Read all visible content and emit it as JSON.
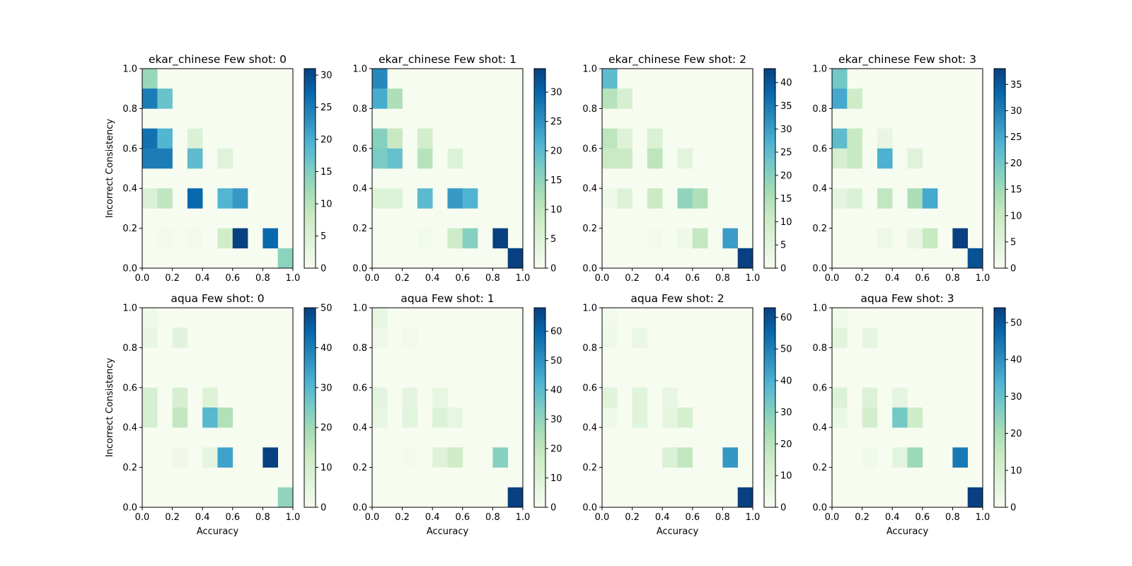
{
  "figure": {
    "shared_xlabel": "Accuracy",
    "shared_ylabel": "Incorrect Consistency"
  },
  "colormap": [
    "#f7fcf0",
    "#e0f3db",
    "#ccebc5",
    "#a8ddb5",
    "#7bccc4",
    "#4eb3d3",
    "#2b8cbe",
    "#0868ac",
    "#084081"
  ],
  "chart_data": [
    {
      "type": "heatmap",
      "title": "ekar_chinese Few shot: 0",
      "xlabel": "",
      "ylabel": "Incorrect Consistency",
      "xlim": [
        0,
        1
      ],
      "ylim": [
        0,
        1
      ],
      "ticks": [
        "0.0",
        "0.2",
        "0.4",
        "0.6",
        "0.8",
        "1.0"
      ],
      "bins": 10,
      "vmax": 31,
      "colorbar_ticks": [
        0,
        5,
        10,
        15,
        20,
        25,
        30
      ],
      "cells": [
        [
          0,
          9,
          13
        ],
        [
          0,
          8,
          25
        ],
        [
          1,
          8,
          17
        ],
        [
          0,
          6,
          26
        ],
        [
          1,
          6,
          19
        ],
        [
          3,
          6,
          5
        ],
        [
          0,
          5,
          25
        ],
        [
          1,
          5,
          25
        ],
        [
          3,
          5,
          18
        ],
        [
          5,
          5,
          4
        ],
        [
          0,
          3,
          5
        ],
        [
          1,
          3,
          9
        ],
        [
          3,
          3,
          27
        ],
        [
          5,
          3,
          19
        ],
        [
          6,
          3,
          22
        ],
        [
          1,
          1,
          1
        ],
        [
          3,
          1,
          1
        ],
        [
          5,
          1,
          7
        ],
        [
          6,
          1,
          31
        ],
        [
          8,
          1,
          27
        ],
        [
          9,
          0,
          14
        ]
      ]
    },
    {
      "type": "heatmap",
      "title": "ekar_chinese Few shot: 1",
      "xlabel": "",
      "ylabel": "",
      "xlim": [
        0,
        1
      ],
      "ylim": [
        0,
        1
      ],
      "ticks": [
        "0.0",
        "0.2",
        "0.4",
        "0.6",
        "0.8",
        "1.0"
      ],
      "bins": 10,
      "vmax": 34,
      "colorbar_ticks": [
        0,
        5,
        10,
        15,
        20,
        25,
        30
      ],
      "cells": [
        [
          0,
          9,
          26
        ],
        [
          0,
          8,
          22
        ],
        [
          1,
          8,
          12
        ],
        [
          0,
          6,
          16
        ],
        [
          1,
          6,
          9
        ],
        [
          3,
          6,
          7
        ],
        [
          0,
          5,
          17
        ],
        [
          1,
          5,
          19
        ],
        [
          3,
          5,
          11
        ],
        [
          5,
          5,
          5
        ],
        [
          0,
          3,
          5
        ],
        [
          1,
          3,
          5
        ],
        [
          3,
          3,
          20
        ],
        [
          5,
          3,
          24
        ],
        [
          6,
          3,
          21
        ],
        [
          3,
          1,
          1
        ],
        [
          5,
          1,
          8
        ],
        [
          6,
          1,
          16
        ],
        [
          8,
          1,
          34
        ],
        [
          9,
          0,
          34
        ]
      ]
    },
    {
      "type": "heatmap",
      "title": "ekar_chinese Few shot: 2",
      "xlabel": "",
      "ylabel": "",
      "xlim": [
        0,
        1
      ],
      "ylim": [
        0,
        1
      ],
      "ticks": [
        "0.0",
        "0.2",
        "0.4",
        "0.6",
        "0.8",
        "1.0"
      ],
      "bins": 10,
      "vmax": 43,
      "colorbar_ticks": [
        0,
        5,
        10,
        15,
        20,
        25,
        30,
        35,
        40
      ],
      "cells": [
        [
          0,
          9,
          25
        ],
        [
          0,
          8,
          14
        ],
        [
          1,
          8,
          8
        ],
        [
          0,
          6,
          13
        ],
        [
          1,
          6,
          6
        ],
        [
          3,
          6,
          7
        ],
        [
          0,
          5,
          11
        ],
        [
          1,
          5,
          11
        ],
        [
          3,
          5,
          13
        ],
        [
          5,
          5,
          5
        ],
        [
          0,
          3,
          2
        ],
        [
          1,
          3,
          6
        ],
        [
          3,
          3,
          11
        ],
        [
          5,
          3,
          19
        ],
        [
          6,
          3,
          15
        ],
        [
          3,
          1,
          1
        ],
        [
          5,
          1,
          2
        ],
        [
          6,
          1,
          12
        ],
        [
          8,
          1,
          30
        ],
        [
          9,
          0,
          43
        ]
      ]
    },
    {
      "type": "heatmap",
      "title": "ekar_chinese Few shot: 3",
      "xlabel": "",
      "ylabel": "",
      "xlim": [
        0,
        1
      ],
      "ylim": [
        0,
        1
      ],
      "ticks": [
        "0.0",
        "0.2",
        "0.4",
        "0.6",
        "0.8",
        "1.0"
      ],
      "bins": 10,
      "vmax": 38,
      "colorbar_ticks": [
        0,
        5,
        10,
        15,
        20,
        25,
        30,
        35
      ],
      "cells": [
        [
          0,
          9,
          20
        ],
        [
          0,
          8,
          25
        ],
        [
          1,
          8,
          9
        ],
        [
          0,
          6,
          22
        ],
        [
          1,
          6,
          10
        ],
        [
          3,
          6,
          3
        ],
        [
          0,
          5,
          7
        ],
        [
          1,
          5,
          10
        ],
        [
          3,
          5,
          24
        ],
        [
          5,
          5,
          5
        ],
        [
          0,
          3,
          4
        ],
        [
          1,
          3,
          6
        ],
        [
          3,
          3,
          11
        ],
        [
          5,
          3,
          14
        ],
        [
          6,
          3,
          25
        ],
        [
          3,
          1,
          2
        ],
        [
          5,
          1,
          3
        ],
        [
          6,
          1,
          10
        ],
        [
          8,
          1,
          38
        ],
        [
          9,
          0,
          36
        ]
      ]
    },
    {
      "type": "heatmap",
      "title": "aqua Few shot: 0",
      "xlabel": "Accuracy",
      "ylabel": "Incorrect Consistency",
      "xlim": [
        0,
        1
      ],
      "ylim": [
        0,
        1
      ],
      "ticks": [
        "0.0",
        "0.2",
        "0.4",
        "0.6",
        "0.8",
        "1.0"
      ],
      "bins": 10,
      "vmax": 50,
      "colorbar_ticks": [
        0,
        10,
        20,
        30,
        40,
        50
      ],
      "cells": [
        [
          0,
          9,
          2
        ],
        [
          0,
          8,
          4
        ],
        [
          2,
          8,
          6
        ],
        [
          0,
          5,
          9
        ],
        [
          2,
          5,
          9
        ],
        [
          4,
          5,
          7
        ],
        [
          0,
          4,
          9
        ],
        [
          2,
          4,
          14
        ],
        [
          4,
          4,
          30
        ],
        [
          5,
          4,
          17
        ],
        [
          2,
          2,
          2
        ],
        [
          4,
          2,
          5
        ],
        [
          5,
          2,
          34
        ],
        [
          8,
          2,
          50
        ],
        [
          9,
          0,
          22
        ]
      ]
    },
    {
      "type": "heatmap",
      "title": "aqua Few shot: 1",
      "xlabel": "Accuracy",
      "ylabel": "",
      "xlim": [
        0,
        1
      ],
      "ylim": [
        0,
        1
      ],
      "ticks": [
        "0.0",
        "0.2",
        "0.4",
        "0.6",
        "0.8",
        "1.0"
      ],
      "bins": 10,
      "vmax": 68,
      "colorbar_ticks": [
        0,
        10,
        20,
        30,
        40,
        50,
        60
      ],
      "cells": [
        [
          0,
          9,
          6
        ],
        [
          0,
          8,
          3
        ],
        [
          2,
          8,
          2
        ],
        [
          0,
          5,
          7
        ],
        [
          2,
          5,
          7
        ],
        [
          4,
          5,
          6
        ],
        [
          0,
          4,
          6
        ],
        [
          2,
          4,
          8
        ],
        [
          4,
          4,
          10
        ],
        [
          5,
          4,
          6
        ],
        [
          2,
          2,
          1
        ],
        [
          4,
          2,
          9
        ],
        [
          5,
          2,
          16
        ],
        [
          8,
          2,
          32
        ],
        [
          9,
          0,
          68
        ]
      ]
    },
    {
      "type": "heatmap",
      "title": "aqua Few shot: 2",
      "xlabel": "Accuracy",
      "ylabel": "",
      "xlim": [
        0,
        1
      ],
      "ylim": [
        0,
        1
      ],
      "ticks": [
        "0.0",
        "0.2",
        "0.4",
        "0.6",
        "0.8",
        "1.0"
      ],
      "bins": 10,
      "vmax": 63,
      "colorbar_ticks": [
        0,
        10,
        20,
        30,
        40,
        50,
        60
      ],
      "cells": [
        [
          0,
          9,
          2
        ],
        [
          0,
          8,
          3
        ],
        [
          2,
          8,
          4
        ],
        [
          0,
          5,
          8
        ],
        [
          2,
          5,
          8
        ],
        [
          4,
          5,
          5
        ],
        [
          0,
          4,
          3
        ],
        [
          2,
          4,
          8
        ],
        [
          4,
          4,
          6
        ],
        [
          5,
          4,
          12
        ],
        [
          4,
          2,
          10
        ],
        [
          5,
          2,
          18
        ],
        [
          8,
          2,
          45
        ],
        [
          9,
          0,
          63
        ]
      ]
    },
    {
      "type": "heatmap",
      "title": "aqua Few shot: 3",
      "xlabel": "Accuracy",
      "ylabel": "",
      "xlim": [
        0,
        1
      ],
      "ylim": [
        0,
        1
      ],
      "ticks": [
        "0.0",
        "0.2",
        "0.4",
        "0.6",
        "0.8",
        "1.0"
      ],
      "bins": 10,
      "vmax": 54,
      "colorbar_ticks": [
        0,
        10,
        20,
        30,
        40,
        50
      ],
      "cells": [
        [
          0,
          9,
          2
        ],
        [
          0,
          8,
          6
        ],
        [
          2,
          8,
          5
        ],
        [
          0,
          5,
          8
        ],
        [
          2,
          5,
          8
        ],
        [
          4,
          5,
          5
        ],
        [
          0,
          4,
          4
        ],
        [
          2,
          4,
          11
        ],
        [
          4,
          4,
          28
        ],
        [
          5,
          4,
          13
        ],
        [
          2,
          2,
          2
        ],
        [
          4,
          2,
          6
        ],
        [
          5,
          2,
          22
        ],
        [
          8,
          2,
          44
        ],
        [
          9,
          0,
          54
        ]
      ]
    }
  ]
}
